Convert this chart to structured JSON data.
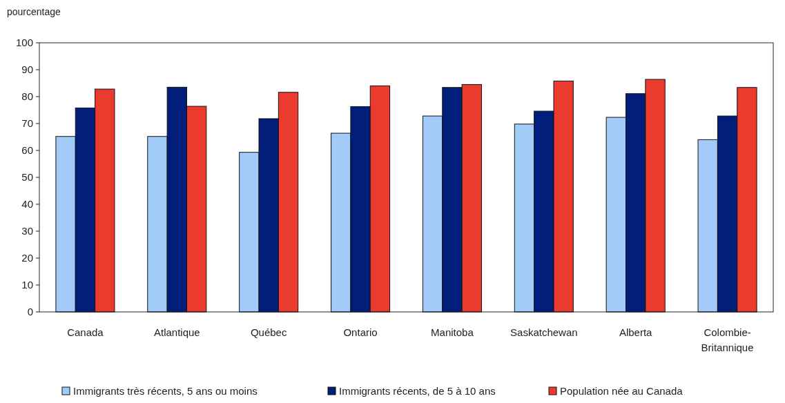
{
  "chart_data": {
    "type": "bar",
    "ylabel": "pourcentage",
    "categories": [
      "Canada",
      "Atlantique",
      "Québec",
      "Ontario",
      "Manitoba",
      "Saskatchewan",
      "Alberta",
      "Colombie-Britannique"
    ],
    "series": [
      {
        "name": "Immigrants très récents, 5 ans ou moins",
        "color": "#a3cbfa",
        "values": [
          65.2,
          65.2,
          59.3,
          66.4,
          72.8,
          69.8,
          72.3,
          64.0
        ]
      },
      {
        "name": "Immigrants récents, de 5 à 10 ans",
        "color": "#001e7a",
        "values": [
          75.8,
          83.5,
          71.8,
          76.3,
          83.4,
          74.6,
          81.1,
          72.8
        ]
      },
      {
        "name": "Population née au Canada",
        "color": "#eb3a2e",
        "values": [
          82.8,
          76.4,
          81.6,
          84.0,
          84.5,
          85.8,
          86.4,
          83.4
        ]
      }
    ],
    "ylim": [
      0,
      100
    ],
    "yticks": [
      0,
      10,
      20,
      30,
      40,
      50,
      60,
      70,
      80,
      90,
      100
    ],
    "grid": false,
    "legend": "bottom"
  }
}
